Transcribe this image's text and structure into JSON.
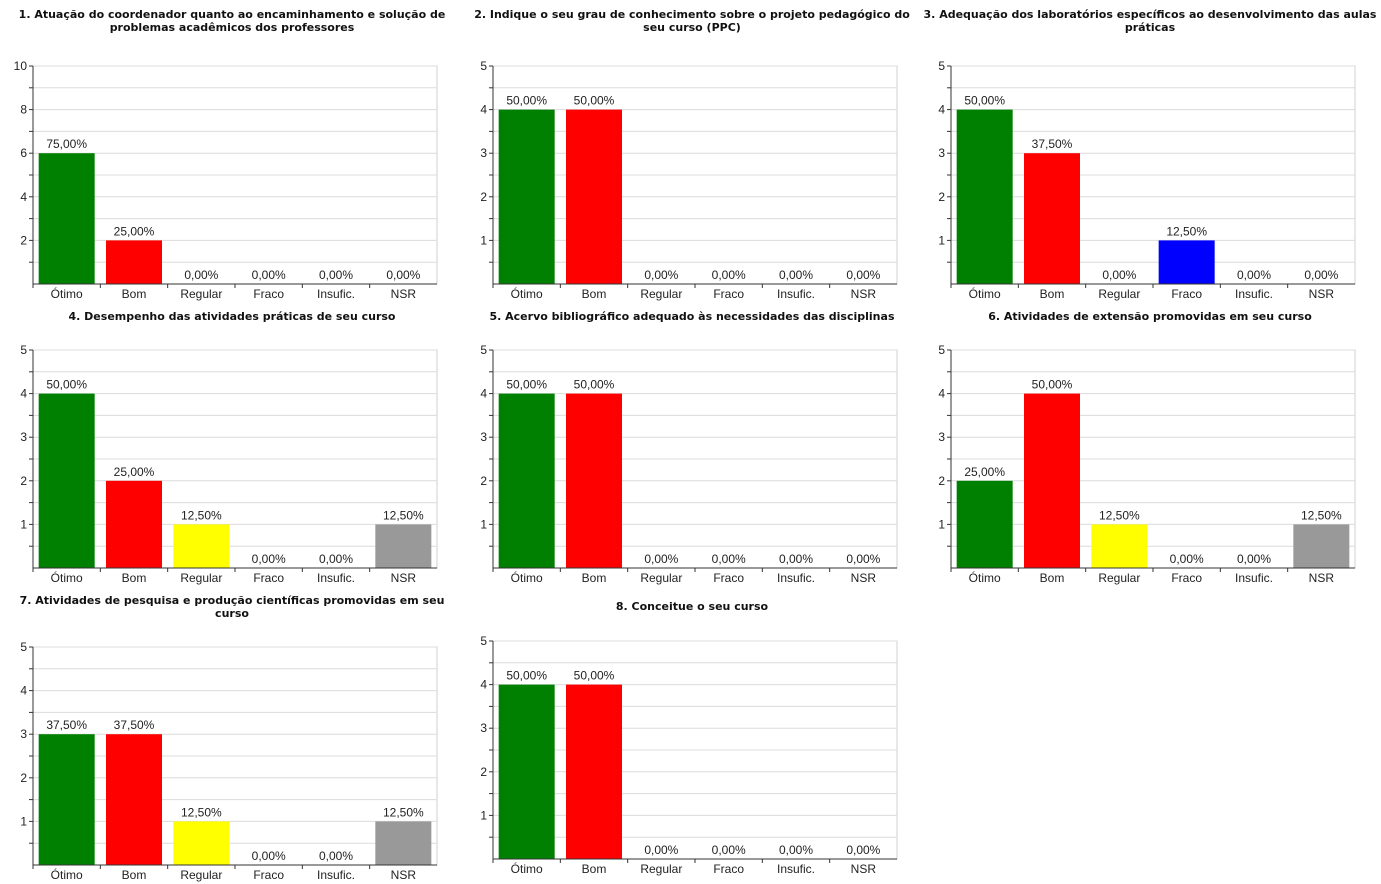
{
  "chart_data": [
    {
      "type": "bar",
      "title": "1. Atuação do coordenador quanto ao encaminhamento e solução de problemas acadêmicos dos professores",
      "categories": [
        "Ótimo",
        "Bom",
        "Regular",
        "Fraco",
        "Insufic.",
        "NSR"
      ],
      "values": [
        6,
        2,
        0,
        0,
        0,
        0
      ],
      "labels": [
        "75,00%",
        "25,00%",
        "0,00%",
        "0,00%",
        "0,00%",
        "0,00%"
      ],
      "ylim": [
        0,
        10
      ],
      "yticks": [
        2,
        4,
        6,
        8,
        10
      ],
      "grid": true
    },
    {
      "type": "bar",
      "title": "2. Indique o seu grau de conhecimento sobre o projeto pedagógico do seu curso (PPC)",
      "categories": [
        "Ótimo",
        "Bom",
        "Regular",
        "Fraco",
        "Insufic.",
        "NSR"
      ],
      "values": [
        4,
        4,
        0,
        0,
        0,
        0
      ],
      "labels": [
        "50,00%",
        "50,00%",
        "0,00%",
        "0,00%",
        "0,00%",
        "0,00%"
      ],
      "ylim": [
        0,
        5
      ],
      "yticks": [
        1,
        2,
        3,
        4,
        5
      ],
      "grid": true
    },
    {
      "type": "bar",
      "title": "3. Adequação dos laboratórios específicos ao desenvolvimento das aulas práticas",
      "categories": [
        "Ótimo",
        "Bom",
        "Regular",
        "Fraco",
        "Insufic.",
        "NSR"
      ],
      "values": [
        4,
        3,
        0,
        1,
        0,
        0
      ],
      "labels": [
        "50,00%",
        "37,50%",
        "0,00%",
        "12,50%",
        "0,00%",
        "0,00%"
      ],
      "ylim": [
        0,
        5
      ],
      "yticks": [
        1,
        2,
        3,
        4,
        5
      ],
      "grid": true
    },
    {
      "type": "bar",
      "title": "4. Desempenho das atividades práticas de seu curso",
      "categories": [
        "Ótimo",
        "Bom",
        "Regular",
        "Fraco",
        "Insufic.",
        "NSR"
      ],
      "values": [
        4,
        2,
        1,
        0,
        0,
        1
      ],
      "labels": [
        "50,00%",
        "25,00%",
        "12,50%",
        "0,00%",
        "0,00%",
        "12,50%"
      ],
      "ylim": [
        0,
        5
      ],
      "yticks": [
        1,
        2,
        3,
        4,
        5
      ],
      "grid": true
    },
    {
      "type": "bar",
      "title": "5. Acervo bibliográfico adequado às necessidades das disciplinas",
      "categories": [
        "Ótimo",
        "Bom",
        "Regular",
        "Fraco",
        "Insufic.",
        "NSR"
      ],
      "values": [
        4,
        4,
        0,
        0,
        0,
        0
      ],
      "labels": [
        "50,00%",
        "50,00%",
        "0,00%",
        "0,00%",
        "0,00%",
        "0,00%"
      ],
      "ylim": [
        0,
        5
      ],
      "yticks": [
        1,
        2,
        3,
        4,
        5
      ],
      "grid": true
    },
    {
      "type": "bar",
      "title": "6. Atividades de extensão promovidas em seu curso",
      "categories": [
        "Ótimo",
        "Bom",
        "Regular",
        "Fraco",
        "Insufic.",
        "NSR"
      ],
      "values": [
        2,
        4,
        1,
        0,
        0,
        1
      ],
      "labels": [
        "25,00%",
        "50,00%",
        "12,50%",
        "0,00%",
        "0,00%",
        "12,50%"
      ],
      "ylim": [
        0,
        5
      ],
      "yticks": [
        1,
        2,
        3,
        4,
        5
      ],
      "grid": true
    },
    {
      "type": "bar",
      "title": "7. Atividades de pesquisa e produção científicas promovidas em seu curso",
      "categories": [
        "Ótimo",
        "Bom",
        "Regular",
        "Fraco",
        "Insufic.",
        "NSR"
      ],
      "values": [
        3,
        3,
        1,
        0,
        0,
        1
      ],
      "labels": [
        "37,50%",
        "37,50%",
        "12,50%",
        "0,00%",
        "0,00%",
        "12,50%"
      ],
      "ylim": [
        0,
        5
      ],
      "yticks": [
        1,
        2,
        3,
        4,
        5
      ],
      "grid": true
    },
    {
      "type": "bar",
      "title": "8. Conceitue o seu curso",
      "categories": [
        "Ótimo",
        "Bom",
        "Regular",
        "Fraco",
        "Insufic.",
        "NSR"
      ],
      "values": [
        4,
        4,
        0,
        0,
        0,
        0
      ],
      "labels": [
        "50,00%",
        "50,00%",
        "0,00%",
        "0,00%",
        "0,00%",
        "0,00%"
      ],
      "ylim": [
        0,
        5
      ],
      "yticks": [
        1,
        2,
        3,
        4,
        5
      ],
      "grid": true
    }
  ],
  "colors": {
    "Ótimo": "#008000",
    "Bom": "#ff0000",
    "Regular": "#ffff00",
    "Fraco": "#0000ff",
    "Insufic.": "#808080",
    "NSR": "#999999"
  }
}
